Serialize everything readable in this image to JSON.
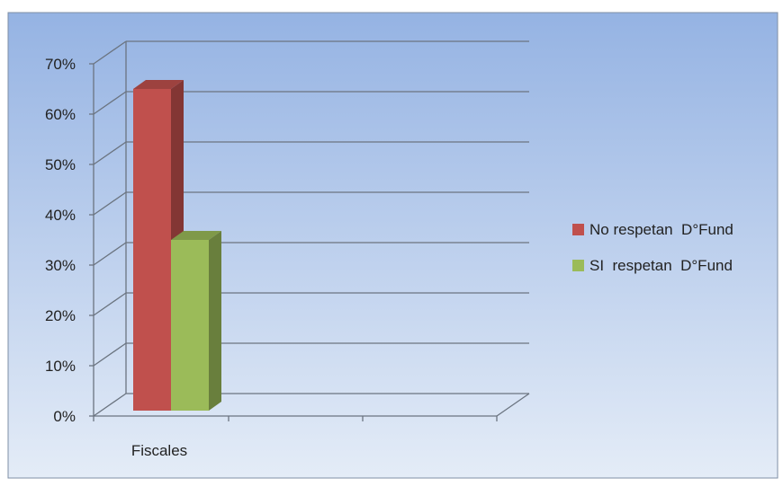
{
  "chart_data": {
    "type": "bar",
    "style": "3d-clustered-column",
    "title": "",
    "xlabel": "",
    "ylabel": "",
    "categories": [
      "Fiscales"
    ],
    "series": [
      {
        "name": "No respetan  D°Fund",
        "values": [
          0.65
        ],
        "color": "#c0504d"
      },
      {
        "name": "SI  respetan  D°Fund",
        "values": [
          0.35
        ],
        "color": "#9bbb59"
      }
    ],
    "ylim": [
      0,
      0.7
    ],
    "y_ticks": [
      "0%",
      "10%",
      "20%",
      "30%",
      "40%",
      "50%",
      "60%",
      "70%"
    ],
    "grid": true,
    "legend": "right",
    "background": "light-blue-gradient"
  }
}
